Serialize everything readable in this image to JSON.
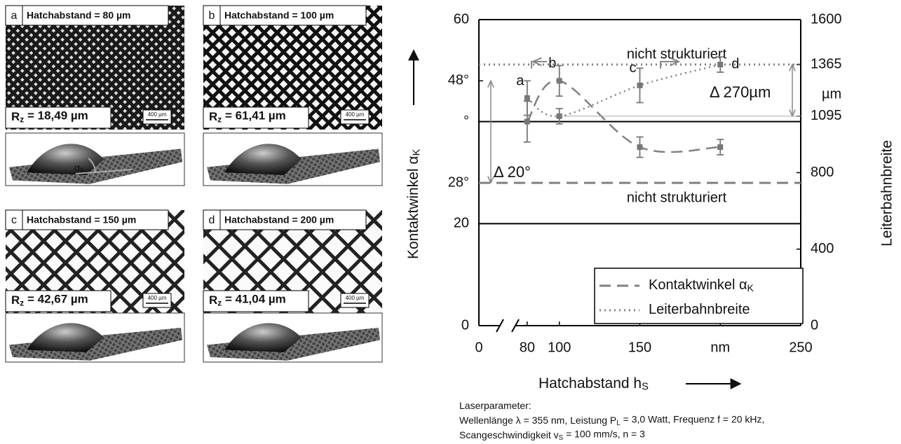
{
  "panels": [
    {
      "letter": "a",
      "title": "Hatchabstand = 80 µm",
      "rz": "R",
      "rz_sub": "z",
      "rz_value": " = 18,49 µm",
      "scale": "400 µm",
      "angle": "α",
      "angle_sub": "K"
    },
    {
      "letter": "b",
      "title": "Hatchabstand = 100 µm",
      "rz": "R",
      "rz_sub": "z",
      "rz_value": " = 61,41 µm",
      "scale": "400 µm"
    },
    {
      "letter": "c",
      "title": "Hatchabstand = 150 µm",
      "rz": "R",
      "rz_sub": "z",
      "rz_value": " = 42,67 µm",
      "scale": "400 µm"
    },
    {
      "letter": "d",
      "title": "Hatchabstand = 200 µm",
      "rz": "R",
      "rz_sub": "z",
      "rz_value": " = 41,04 µm",
      "scale": "400 µm"
    }
  ],
  "chart_data": {
    "type": "line",
    "x_label": "Hatchabstand h",
    "x_label_sub": "S",
    "y_label": "Kontaktwinkel α",
    "y_label_sub": "K",
    "y2_label": "Leiterbahnbreite",
    "y2_unit": "µm",
    "x": [
      80,
      100,
      150,
      200
    ],
    "point_labels": [
      "a",
      "b",
      "c",
      "d"
    ],
    "series": [
      {
        "name": "Kontaktwinkel α",
        "name_sub": "K",
        "color": "#808080",
        "style": "dashed",
        "axis": "y",
        "values": [
          40,
          48,
          35,
          35
        ],
        "errors": [
          4,
          3,
          2,
          1.5
        ],
        "reference": 28,
        "reference_label": "nicht strukturiert"
      },
      {
        "name": "Leiterbahnbreite",
        "color": "#808080",
        "style": "dotted",
        "axis": "y2",
        "values": [
          1190,
          1095,
          1256,
          1365
        ],
        "errors": [
          90,
          40,
          90,
          40
        ],
        "reference": 1365,
        "reference_label": "nicht strukturiert"
      }
    ],
    "xlim": [
      50,
      250
    ],
    "x_break": true,
    "x_origin_tick": 0,
    "xticks": [
      80,
      100,
      150,
      {
        "value": 200,
        "label": "nm"
      },
      250
    ],
    "ylim": [
      0,
      60
    ],
    "yticks": [
      0,
      20,
      {
        "value": 28,
        "label": "28°"
      },
      {
        "value": 40,
        "label": "°"
      },
      {
        "value": 48,
        "label": "48°"
      },
      60
    ],
    "y2lim": [
      0,
      1600
    ],
    "y2ticks": [
      0,
      400,
      800,
      1095,
      1365,
      1600
    ],
    "hlines": [
      20,
      40
    ],
    "annotations": [
      "Δ 20°",
      "Δ 270µm"
    ],
    "legend": "lower right"
  },
  "footnote": [
    [
      "Laserparameter:"
    ],
    [
      "Wellenlänge λ = 355 nm, Leistung P",
      "L",
      " = 3,0 Watt, Frequenz  f = 20 kHz,"
    ],
    [
      "Scangeschwindigkeit v",
      "S",
      " = 100 mm/s, n = 3"
    ]
  ]
}
